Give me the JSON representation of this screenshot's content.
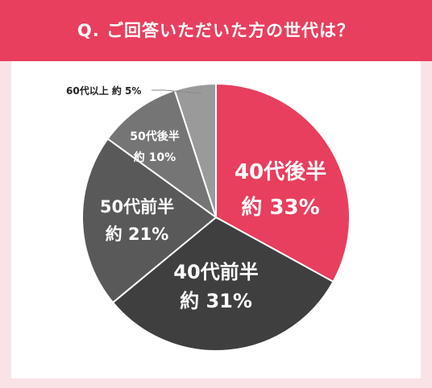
{
  "title": "Q. ご回答いただいた方の世代は？",
  "chart_data": {
    "type": "pie",
    "slices": [
      {
        "label": "40代後半",
        "value_label": "約 33%",
        "value": 33,
        "color": "#e83f5e"
      },
      {
        "label": "40代前半",
        "value_label": "約 31%",
        "value": 31,
        "color": "#3f3f3f"
      },
      {
        "label": "50代前半",
        "value_label": "約 21%",
        "value": 21,
        "color": "#595959"
      },
      {
        "label": "50代後半",
        "value_label": "約 10%",
        "value": 10,
        "color": "#757575"
      },
      {
        "label": "60代以上",
        "value_label": "約 5%",
        "value": 5,
        "color": "#9a9a9a"
      }
    ]
  }
}
